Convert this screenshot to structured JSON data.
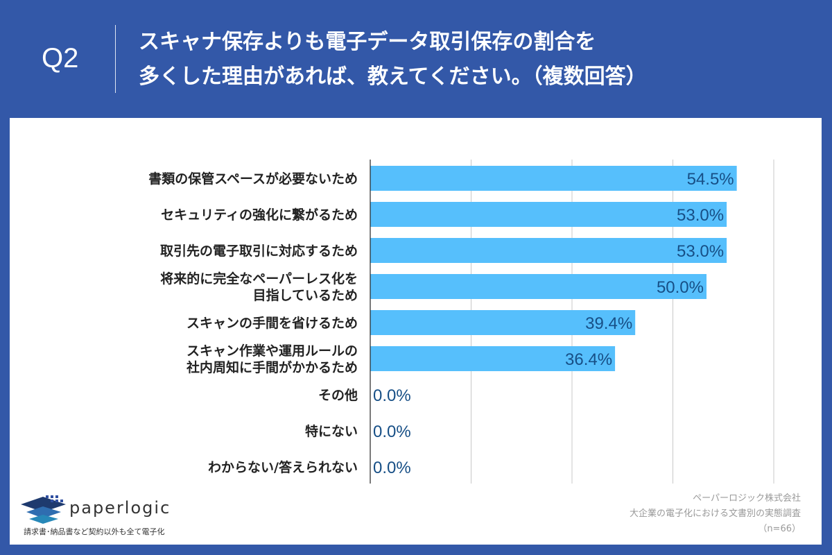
{
  "header": {
    "q_number": "Q2",
    "title_line1": "スキャナ保存よりも電子データ取引保存の割合を",
    "title_line2": "多くした理由があれば、教えてください。（複数回答）"
  },
  "footer": {
    "logo": "paperlogic",
    "tagline": "請求書･納品書など契約以外も全て電子化",
    "source_line1": "ペーパーロジック株式会社",
    "source_line2": "大企業の電子化における文書別の実態調査",
    "sample": "（n=66）"
  },
  "colors": {
    "background": "#3358a8",
    "bar": "#56bffc",
    "value_label": "#174f86"
  },
  "chart_data": {
    "type": "bar",
    "orientation": "horizontal",
    "categories": [
      [
        "書類の保管スペースが必要ないため"
      ],
      [
        "セキュリティの強化に繋がるため"
      ],
      [
        "取引先の電子取引に対応するため"
      ],
      [
        "将来的に完全なペーパーレス化を",
        "目指しているため"
      ],
      [
        "スキャンの手間を省けるため"
      ],
      [
        "スキャン作業や運用ルールの",
        "社内周知に手間がかかるため"
      ],
      [
        "その他"
      ],
      [
        "特にない"
      ],
      [
        "わからない/答えられない"
      ]
    ],
    "values": [
      54.5,
      53.0,
      53.0,
      50.0,
      39.4,
      36.4,
      0.0,
      0.0,
      0.0
    ],
    "data_labels": [
      "54.5%",
      "53.0%",
      "53.0%",
      "50.0%",
      "39.4%",
      "36.4%",
      "0.0%",
      "0.0%",
      "0.0%"
    ],
    "xlim": [
      0,
      60
    ],
    "grid_step": 15,
    "grid": true,
    "tick_labels_shown": false,
    "unit": "%"
  }
}
